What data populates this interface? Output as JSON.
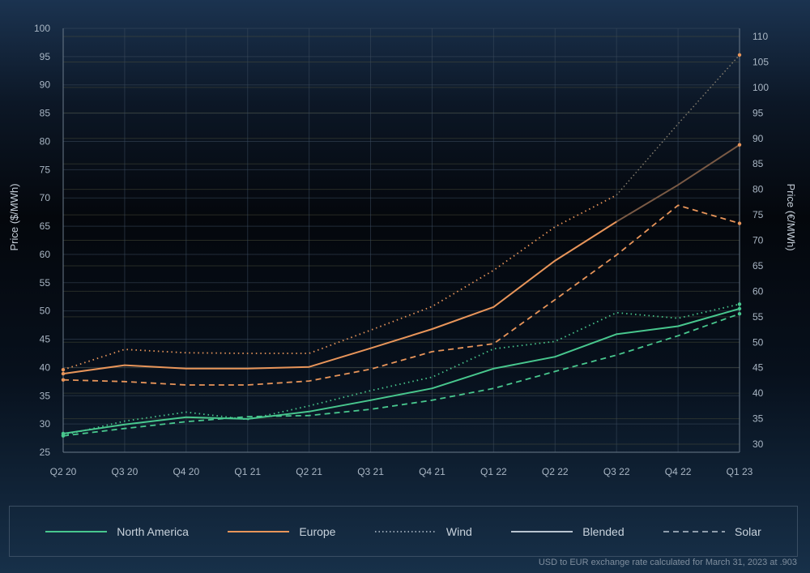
{
  "chart_data": {
    "type": "line",
    "title": "",
    "x": [
      "Q2 20",
      "Q3 20",
      "Q4 20",
      "Q1 21",
      "Q2 21",
      "Q3 21",
      "Q4 21",
      "Q1 22",
      "Q2 22",
      "Q3 22",
      "Q4 22",
      "Q1 23"
    ],
    "ylabel": "Price ($/MWh)",
    "ylim": [
      25,
      100
    ],
    "yticks": [
      25,
      30,
      35,
      40,
      45,
      50,
      55,
      60,
      65,
      70,
      75,
      80,
      85,
      90,
      95,
      100
    ],
    "y2label": "Price (€/MWh)",
    "y2lim": [
      30,
      110
    ],
    "y2ticks": [
      30,
      35,
      40,
      45,
      50,
      55,
      60,
      65,
      70,
      75,
      80,
      85,
      90,
      95,
      100,
      105,
      110
    ],
    "grid": true,
    "legend_position": "bottom",
    "series": [
      {
        "region": "North America",
        "type": "Blended",
        "color": "#48c78e",
        "dash": "solid",
        "values": [
          28.3,
          29.9,
          31.2,
          30.9,
          32.2,
          34.2,
          36.3,
          39.8,
          41.9,
          45.9,
          47.3,
          50.4
        ]
      },
      {
        "region": "North America",
        "type": "Wind",
        "color": "#48c78e",
        "dash": "dot",
        "values": [
          28.0,
          30.5,
          32.1,
          30.8,
          33.2,
          35.9,
          38.3,
          43.3,
          44.6,
          49.7,
          48.7,
          51.2
        ]
      },
      {
        "region": "North America",
        "type": "Solar",
        "color": "#48c78e",
        "dash": "dash",
        "values": [
          27.9,
          29.2,
          30.4,
          31.3,
          31.5,
          32.6,
          34.2,
          36.3,
          39.3,
          42.2,
          45.6,
          49.5
        ]
      },
      {
        "region": "Europe",
        "type": "Blended",
        "color": "#e8955a",
        "dash": "solid",
        "values": [
          38.9,
          40.4,
          39.8,
          39.8,
          40.1,
          43.4,
          46.8,
          50.7,
          58.9,
          65.8,
          72.3,
          79.4
        ]
      },
      {
        "region": "Europe",
        "type": "Wind",
        "color": "#e8955a",
        "dash": "dot",
        "values": [
          39.6,
          43.2,
          42.6,
          42.5,
          42.5,
          46.6,
          50.8,
          57.2,
          64.9,
          70.5,
          83.1,
          95.3
        ]
      },
      {
        "region": "Europe",
        "type": "Solar",
        "color": "#e8955a",
        "dash": "dash",
        "values": [
          37.8,
          37.5,
          36.9,
          36.9,
          37.6,
          39.7,
          42.8,
          44.2,
          52.0,
          59.9,
          68.7,
          65.5
        ]
      }
    ]
  },
  "legend": [
    {
      "label": "North America",
      "color": "#48c78e",
      "dash": "solid"
    },
    {
      "label": "Europe",
      "color": "#e8955a",
      "dash": "solid"
    },
    {
      "label": "Wind",
      "color": "#b8c4d0",
      "dash": "dot"
    },
    {
      "label": "Blended",
      "color": "#b8c4d0",
      "dash": "solid"
    },
    {
      "label": "Solar",
      "color": "#b8c4d0",
      "dash": "dash"
    }
  ],
  "footnote": "USD to EUR exchange rate calculated for March 31, 2023 at .903"
}
